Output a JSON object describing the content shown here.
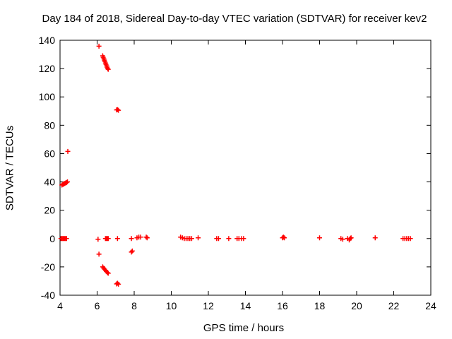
{
  "chart_data": {
    "type": "scatter",
    "title": "Day 184 of 2018, Sidereal Day-to-day VTEC variation (SDTVAR) for receiver kev2",
    "xlabel": "GPS time / hours",
    "ylabel": "SDTVAR / TECUs",
    "xlim": [
      4,
      24
    ],
    "ylim": [
      -40,
      140
    ],
    "xticks": [
      4,
      6,
      8,
      10,
      12,
      14,
      16,
      18,
      20,
      22,
      24
    ],
    "yticks": [
      -40,
      -20,
      0,
      20,
      40,
      60,
      80,
      100,
      120,
      140
    ],
    "grid": false,
    "marker": "+",
    "color": "#ff0000",
    "series": [
      {
        "name": "SDTVAR",
        "points": [
          [
            4.1,
            37.8
          ],
          [
            4.15,
            38.2
          ],
          [
            4.2,
            38.5
          ],
          [
            4.25,
            38.9
          ],
          [
            4.3,
            39.2
          ],
          [
            4.35,
            39.6
          ],
          [
            4.4,
            40.0
          ],
          [
            4.42,
            61.5
          ],
          [
            4.05,
            0
          ],
          [
            4.1,
            0
          ],
          [
            4.15,
            0
          ],
          [
            4.2,
            0
          ],
          [
            4.25,
            0
          ],
          [
            4.3,
            0
          ],
          [
            4.35,
            0
          ],
          [
            6.1,
            135.8
          ],
          [
            6.3,
            129.0
          ],
          [
            6.33,
            128.0
          ],
          [
            6.36,
            127.0
          ],
          [
            6.39,
            126.0
          ],
          [
            6.42,
            125.0
          ],
          [
            6.45,
            124.0
          ],
          [
            6.48,
            123.0
          ],
          [
            6.51,
            122.0
          ],
          [
            6.54,
            121.0
          ],
          [
            6.57,
            120.0
          ],
          [
            6.6,
            119.5
          ],
          [
            7.1,
            91.0
          ],
          [
            7.05,
            90.8
          ],
          [
            7.15,
            90.6
          ],
          [
            6.1,
            -11.0
          ],
          [
            6.3,
            -20.0
          ],
          [
            6.35,
            -20.8
          ],
          [
            6.4,
            -21.6
          ],
          [
            6.45,
            -22.4
          ],
          [
            6.5,
            -23.2
          ],
          [
            6.55,
            -24.0
          ],
          [
            6.6,
            -24.5
          ],
          [
            7.05,
            -32.0
          ],
          [
            7.1,
            -31.5
          ],
          [
            7.15,
            -32.2
          ],
          [
            6.05,
            -0.5
          ],
          [
            6.45,
            0
          ],
          [
            6.5,
            0
          ],
          [
            6.55,
            0
          ],
          [
            6.6,
            0
          ],
          [
            7.1,
            0
          ],
          [
            7.85,
            -9.5
          ],
          [
            7.9,
            -8.8
          ],
          [
            7.85,
            0
          ],
          [
            8.15,
            0.5
          ],
          [
            8.25,
            1.0
          ],
          [
            8.35,
            1.0
          ],
          [
            8.65,
            1.0
          ],
          [
            8.7,
            0.5
          ],
          [
            10.5,
            1.0
          ],
          [
            10.6,
            0.5
          ],
          [
            10.7,
            0
          ],
          [
            10.8,
            0
          ],
          [
            10.9,
            0
          ],
          [
            11.0,
            0
          ],
          [
            11.1,
            0
          ],
          [
            11.45,
            0.5
          ],
          [
            12.45,
            0
          ],
          [
            12.55,
            0
          ],
          [
            13.1,
            0
          ],
          [
            13.55,
            0
          ],
          [
            13.65,
            0
          ],
          [
            13.8,
            0
          ],
          [
            13.9,
            0
          ],
          [
            16.0,
            0.5
          ],
          [
            16.05,
            1.0
          ],
          [
            16.1,
            0.5
          ],
          [
            18.0,
            0.5
          ],
          [
            19.15,
            0
          ],
          [
            19.25,
            -0.5
          ],
          [
            19.5,
            0
          ],
          [
            19.6,
            -1.0
          ],
          [
            19.65,
            0
          ],
          [
            19.7,
            0.5
          ],
          [
            21.0,
            0.5
          ],
          [
            22.5,
            0
          ],
          [
            22.6,
            0
          ],
          [
            22.7,
            0
          ],
          [
            22.8,
            0
          ],
          [
            22.9,
            0
          ]
        ]
      }
    ]
  }
}
